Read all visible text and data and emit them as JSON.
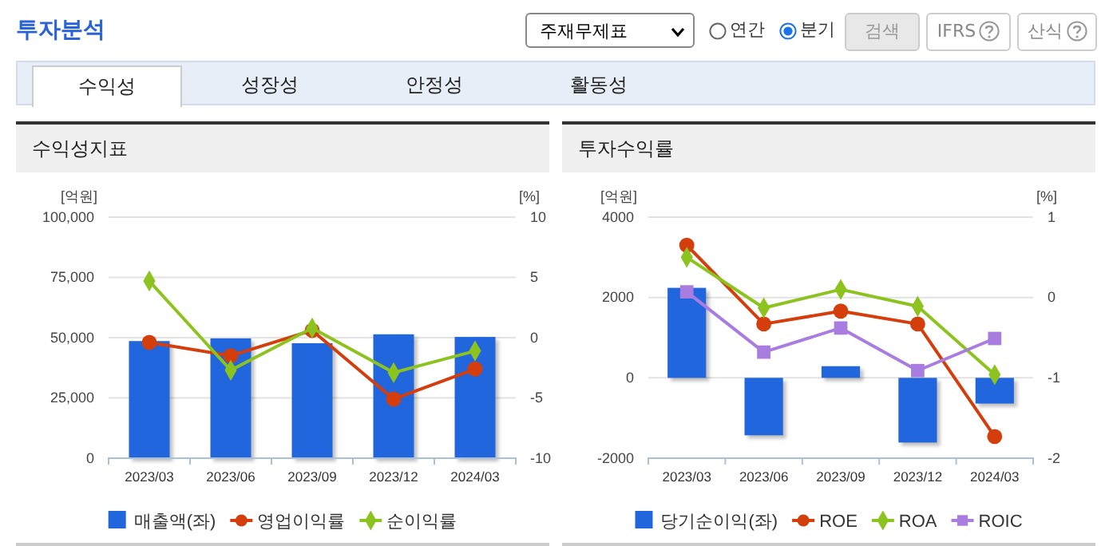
{
  "chart_data": [
    {
      "type": "bar",
      "title": "수익성지표",
      "ylabel": "[억원]",
      "y2label": "[%]",
      "categories": [
        "2023/03",
        "2023/06",
        "2023/09",
        "2023/12",
        "2024/03"
      ],
      "series": [
        {
          "name": "매출액(좌)",
          "color": "#2266dd",
          "values": [
            48600,
            49700,
            47700,
            51400,
            50300
          ]
        },
        {
          "name": "영업이익률",
          "type": "line",
          "axis": "y2",
          "color": "#d43d0c",
          "marker": "circle",
          "values": [
            -0.4,
            -1.5,
            0.6,
            -5.1,
            -2.6
          ]
        },
        {
          "name": "순이익률",
          "type": "line",
          "axis": "y2",
          "color": "#8cc31e",
          "marker": "diamond",
          "values": [
            4.7,
            -2.7,
            0.8,
            -2.9,
            -1.1
          ]
        }
      ],
      "ylim": [
        0,
        100000
      ],
      "yticks": [
        0,
        {
          "value": 25000,
          "label": "25,000"
        },
        {
          "value": 50000,
          "label": "50,000"
        },
        {
          "value": 75000,
          "label": "75,000"
        },
        {
          "value": 100000,
          "label": "100,000"
        }
      ],
      "y2lim": [
        -10,
        10
      ],
      "y2ticks": [
        -10,
        -5,
        0,
        5,
        10
      ],
      "grid": "y",
      "legend": "bottom",
      "annotations": [
        "투자분석",
        "주재무제표",
        "연간",
        "분기",
        "검색",
        "IFRS",
        "산식",
        "수익성",
        "성장성",
        "안정성",
        "활동성"
      ]
    },
    {
      "type": "bar",
      "title": "투자수익률",
      "ylabel": "[억원]",
      "y2label": "[%]",
      "categories": [
        "2023/03",
        "2023/06",
        "2023/09",
        "2023/12",
        "2024/03"
      ],
      "series": [
        {
          "name": "당기순이익(좌)",
          "color": "#2266dd",
          "values": [
            2240,
            -1430,
            290,
            -1610,
            -640
          ]
        },
        {
          "name": "ROE",
          "type": "line",
          "axis": "y2",
          "color": "#d43d0c",
          "marker": "circle",
          "values": [
            0.65,
            -0.33,
            -0.17,
            -0.33,
            -1.73
          ]
        },
        {
          "name": "ROA",
          "type": "line",
          "axis": "y2",
          "color": "#8cc31e",
          "marker": "diamond",
          "values": [
            0.5,
            -0.13,
            0.1,
            -0.11,
            -0.96
          ]
        },
        {
          "name": "ROIC",
          "type": "line",
          "axis": "y2",
          "color": "#a87ddf",
          "marker": "square",
          "values": [
            0.07,
            -0.68,
            -0.38,
            -0.91,
            -0.51
          ]
        }
      ],
      "ylim": [
        -2000,
        4000
      ],
      "yticks": [
        -2000,
        0,
        2000,
        4000
      ],
      "y2lim": [
        -2,
        1
      ],
      "y2ticks": [
        -2,
        -1,
        0,
        1
      ],
      "grid": "y",
      "legend": "bottom"
    }
  ]
}
